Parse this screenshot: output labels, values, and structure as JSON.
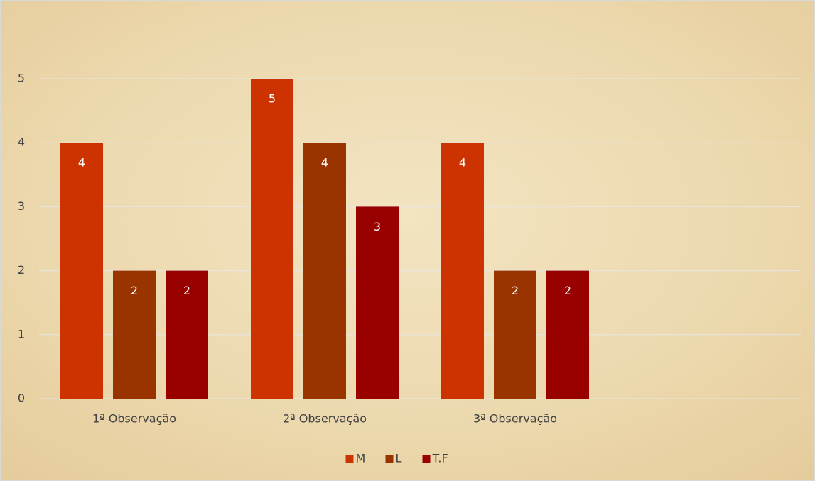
{
  "chart_data": {
    "type": "bar",
    "categories": [
      "1ª Observação",
      "2ª Observação",
      "3ª Observação",
      null
    ],
    "series": [
      {
        "name": "M",
        "color": "#cc3300",
        "values": [
          4,
          5,
          4,
          null
        ]
      },
      {
        "name": "L",
        "color": "#993300",
        "values": [
          2,
          4,
          2,
          null
        ]
      },
      {
        "name": "T.F",
        "color": "#990000",
        "values": [
          2,
          3,
          2,
          null
        ]
      }
    ],
    "ylim": [
      0,
      5
    ],
    "yticks": [
      0,
      1,
      2,
      3,
      4,
      5
    ],
    "grid": true,
    "legend": "bottom"
  }
}
